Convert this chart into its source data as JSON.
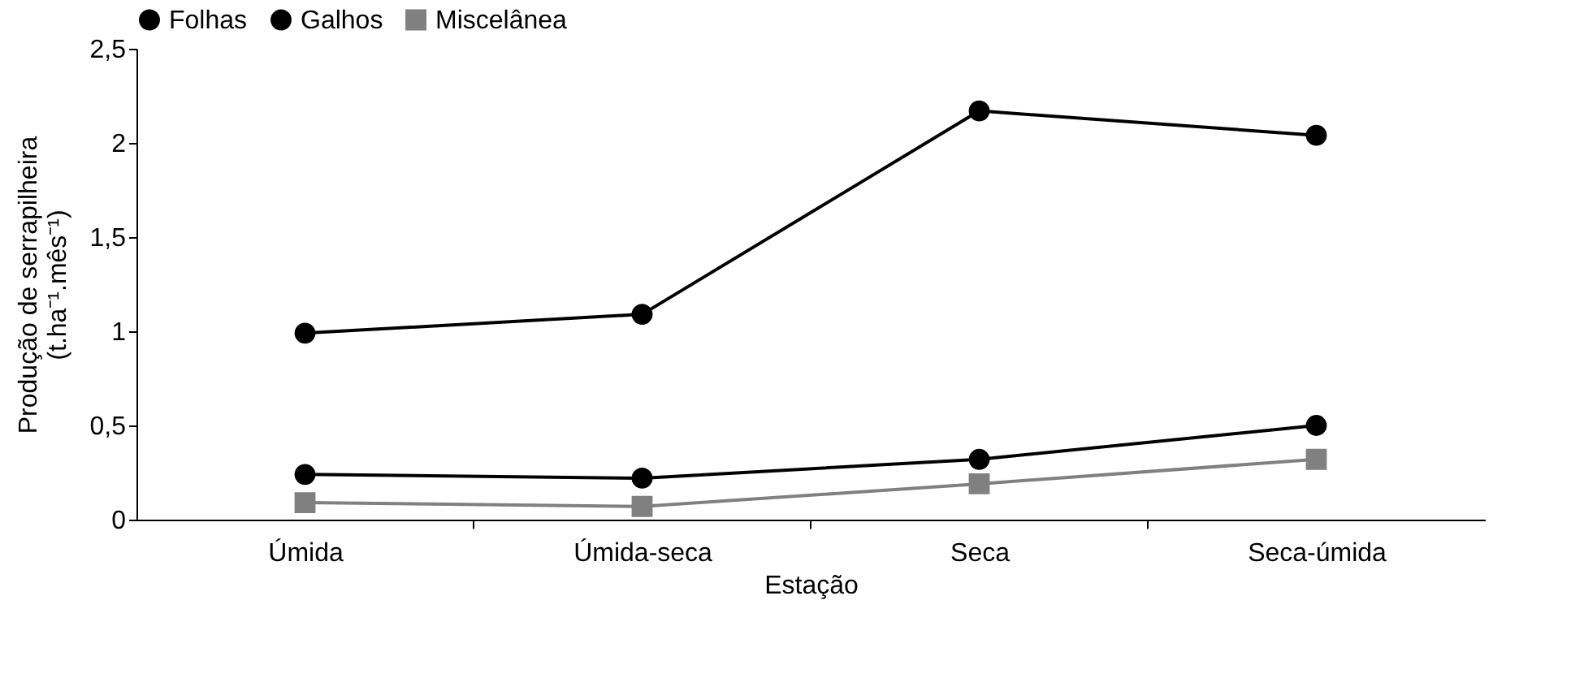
{
  "chart_data": {
    "type": "line",
    "xlabel": "Estação",
    "ylabel": "Produção de serrapilheira\n(t.ha⁻¹.mês⁻¹)",
    "categories": [
      "Úmida",
      "Úmida-seca",
      "Seca",
      "Seca-úmida"
    ],
    "series": [
      {
        "name": "Folhas",
        "color": "#000000",
        "marker": "circle",
        "values": [
          0.99,
          1.09,
          2.17,
          2.04
        ]
      },
      {
        "name": "Galhos",
        "color": "#000000",
        "marker": "circle",
        "values": [
          0.24,
          0.22,
          0.32,
          0.5
        ]
      },
      {
        "name": "Miscelânea",
        "color": "#808080",
        "marker": "square",
        "values": [
          0.09,
          0.07,
          0.19,
          0.32
        ]
      }
    ],
    "ylim": [
      0,
      2.5
    ],
    "yticks": [
      0,
      {
        "value": 0.5,
        "label": "0,5"
      },
      1,
      {
        "value": 1.5,
        "label": "1,5"
      },
      2,
      {
        "value": 2.5,
        "label": "2,5"
      }
    ],
    "grid": false,
    "legend": "top",
    "line_style": "solid"
  }
}
